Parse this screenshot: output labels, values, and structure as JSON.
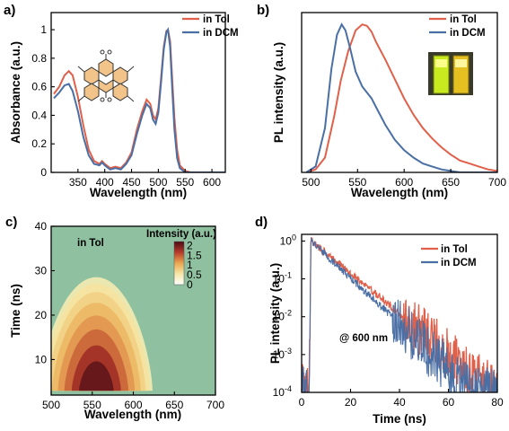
{
  "colors": {
    "tol": "#e0604a",
    "dcm": "#4a6fa5"
  },
  "chart_data": [
    {
      "panel": "a)",
      "type": "line",
      "xlabel": "Wavelength (nm)",
      "ylabel": "Absorbance (a.u.)",
      "xlim": [
        300,
        625
      ],
      "ylim": [
        0,
        1.12
      ],
      "xticks": [
        "350",
        "400",
        "450",
        "500",
        "550",
        "600"
      ],
      "yticks": [
        "0",
        "0.2",
        "0.4",
        "0.6",
        "0.8",
        "1"
      ],
      "legend": "top-right",
      "inset": "molecular-structure",
      "series": [
        {
          "name": "in Tol",
          "color": "#e0604a",
          "x": [
            305,
            315,
            325,
            333,
            340,
            350,
            360,
            370,
            380,
            390,
            395,
            400,
            410,
            420,
            430,
            440,
            450,
            460,
            470,
            478,
            485,
            490,
            495,
            500,
            505,
            510,
            515,
            518,
            522,
            526,
            530,
            535,
            540,
            550,
            560,
            600,
            625
          ],
          "y": [
            0.55,
            0.6,
            0.68,
            0.71,
            0.68,
            0.53,
            0.33,
            0.16,
            0.08,
            0.06,
            0.08,
            0.06,
            0.03,
            0.04,
            0.03,
            0.07,
            0.14,
            0.3,
            0.43,
            0.51,
            0.48,
            0.4,
            0.37,
            0.45,
            0.66,
            0.88,
            0.99,
            1.0,
            0.92,
            0.65,
            0.38,
            0.16,
            0.05,
            0.01,
            0.0,
            0.0,
            0.0
          ]
        },
        {
          "name": "in DCM",
          "color": "#4a6fa5",
          "x": [
            305,
            315,
            325,
            333,
            340,
            350,
            360,
            370,
            380,
            390,
            395,
            400,
            410,
            420,
            430,
            440,
            450,
            460,
            470,
            478,
            485,
            490,
            495,
            500,
            505,
            510,
            515,
            518,
            522,
            526,
            530,
            535,
            540,
            550,
            560,
            600,
            625
          ],
          "y": [
            0.52,
            0.56,
            0.61,
            0.62,
            0.57,
            0.43,
            0.25,
            0.12,
            0.06,
            0.05,
            0.07,
            0.05,
            0.02,
            0.03,
            0.02,
            0.06,
            0.12,
            0.27,
            0.4,
            0.48,
            0.45,
            0.37,
            0.34,
            0.42,
            0.63,
            0.86,
            0.98,
            1.0,
            0.88,
            0.58,
            0.3,
            0.1,
            0.03,
            0.0,
            0.0,
            0.0,
            0.0
          ]
        }
      ]
    },
    {
      "panel": "b)",
      "type": "line",
      "xlabel": "Wavelength (nm)",
      "ylabel": "PL intensity (a.u.)",
      "xlim": [
        490,
        700
      ],
      "ylim": [
        0,
        1.08
      ],
      "xticks": [
        "500",
        "550",
        "600",
        "650",
        "700"
      ],
      "legend": "top-right",
      "inset": "cuvette-photo",
      "series": [
        {
          "name": "in Tol",
          "color": "#e0604a",
          "x": [
            495,
            505,
            515,
            525,
            532,
            540,
            548,
            555,
            560,
            565,
            570,
            580,
            590,
            600,
            610,
            620,
            630,
            640,
            650,
            660,
            670,
            680,
            690,
            700
          ],
          "y": [
            0.0,
            0.02,
            0.1,
            0.38,
            0.62,
            0.82,
            0.96,
            1.0,
            0.99,
            0.95,
            0.88,
            0.76,
            0.63,
            0.5,
            0.39,
            0.3,
            0.23,
            0.17,
            0.12,
            0.08,
            0.06,
            0.04,
            0.02,
            0.01
          ]
        },
        {
          "name": "in DCM",
          "color": "#4a6fa5",
          "x": [
            495,
            505,
            515,
            522,
            528,
            533,
            537,
            542,
            548,
            555,
            560,
            565,
            570,
            575,
            580,
            590,
            600,
            610,
            620,
            630,
            640,
            650,
            660,
            670,
            680,
            690,
            700
          ],
          "y": [
            0.0,
            0.04,
            0.3,
            0.7,
            0.93,
            1.0,
            0.96,
            0.84,
            0.68,
            0.58,
            0.54,
            0.5,
            0.44,
            0.38,
            0.32,
            0.22,
            0.15,
            0.1,
            0.06,
            0.04,
            0.02,
            0.01,
            0.0,
            0.0,
            0.0,
            0.0,
            0.0
          ]
        }
      ]
    },
    {
      "panel": "c)",
      "type": "heatmap",
      "xlabel": "Wavelength (nm)",
      "ylabel": "Time (ns)",
      "xlim": [
        500,
        700
      ],
      "ylim": [
        2,
        40
      ],
      "xticks": [
        "500",
        "550",
        "600",
        "650",
        "700"
      ],
      "yticks": [
        "10",
        "20",
        "30",
        "40"
      ],
      "annotation": "in Tol",
      "colorbar": {
        "title": "Intensity (a.u.)",
        "ticks": [
          "2",
          "1.5",
          "1",
          "0.5",
          "0"
        ],
        "range": [
          0,
          2.2
        ]
      },
      "peak": {
        "wavelength": 555,
        "time": 4,
        "intensity": 2.2
      }
    },
    {
      "panel": "d)",
      "type": "line",
      "xlabel": "Time (ns)",
      "ylabel": "PL intensity (a.u.)",
      "xlim": [
        0,
        80
      ],
      "ylim": [
        0.0001,
        1.5
      ],
      "yscale": "log",
      "xticks": [
        "0",
        "20",
        "40",
        "60",
        "80"
      ],
      "yticks": [
        "10^0",
        "10^-1",
        "10^-2",
        "10^-3",
        "10^-4"
      ],
      "legend": "top-right",
      "annotation": "@ 600 nm",
      "series": [
        {
          "name": "in Tol",
          "color": "#e0604a",
          "x": [
            0,
            2.5,
            3.2,
            3.8,
            80
          ],
          "peak_time": 3.8,
          "decay_ns": 8.2
        },
        {
          "name": "in DCM",
          "color": "#4a6fa5",
          "x": [
            0,
            2.5,
            3.2,
            3.8,
            80
          ],
          "peak_time": 3.8,
          "decay_ns": 7.2
        }
      ]
    }
  ],
  "labels": {
    "a_letter": "a)",
    "b_letter": "b)",
    "c_letter": "c)",
    "d_letter": "d)",
    "a_xlabel": "Wavelength (nm)",
    "a_ylabel": "Absorbance (a.u.)",
    "b_xlabel": "Wavelength (nm)",
    "b_ylabel": "PL intensity (a.u.)",
    "c_xlabel": "Wavelength (nm)",
    "c_ylabel": "Time (ns)",
    "d_xlabel": "Time (ns)",
    "d_ylabel": "PL intensity (a.u.)",
    "legend_tol": "in Tol",
    "legend_dcm": "in DCM",
    "c_annotation": "in Tol",
    "c_colorbar_title": "Intensity (a.u.)",
    "d_annotation": "@ 600 nm"
  }
}
